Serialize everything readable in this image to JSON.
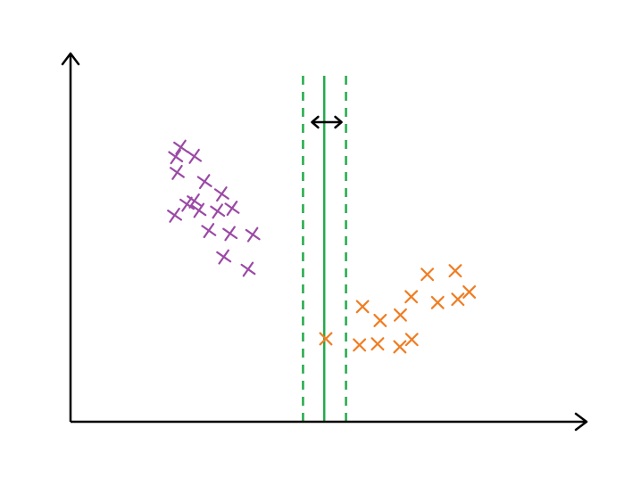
{
  "diagram": {
    "kind": "svm-max-margin-separator",
    "colors": {
      "axis": "#000000",
      "class_a": "#9b4aa6",
      "class_b": "#f07d22",
      "hyperplane": "#23a94a",
      "margin": "#23a94a",
      "margin_arrow": "#000000"
    },
    "class_a_points": [
      [
        0.213,
        0.751
      ],
      [
        0.203,
        0.725
      ],
      [
        0.239,
        0.726
      ],
      [
        0.206,
        0.682
      ],
      [
        0.259,
        0.657
      ],
      [
        0.292,
        0.623
      ],
      [
        0.225,
        0.595
      ],
      [
        0.201,
        0.565
      ],
      [
        0.239,
        0.604
      ],
      [
        0.284,
        0.576
      ],
      [
        0.312,
        0.584
      ],
      [
        0.267,
        0.523
      ],
      [
        0.308,
        0.515
      ],
      [
        0.296,
        0.451
      ],
      [
        0.352,
        0.512
      ],
      [
        0.343,
        0.417
      ],
      [
        0.248,
        0.578
      ]
    ],
    "class_b_points": [
      [
        0.493,
        0.227
      ],
      [
        0.593,
        0.213
      ],
      [
        0.558,
        0.21
      ],
      [
        0.636,
        0.205
      ],
      [
        0.598,
        0.277
      ],
      [
        0.659,
        0.225
      ],
      [
        0.564,
        0.315
      ],
      [
        0.637,
        0.292
      ],
      [
        0.709,
        0.326
      ],
      [
        0.689,
        0.403
      ],
      [
        0.743,
        0.413
      ],
      [
        0.748,
        0.335
      ],
      [
        0.77,
        0.355
      ],
      [
        0.658,
        0.342
      ]
    ],
    "decision_boundary_x": 0.49,
    "margin_lower_x": 0.449,
    "margin_upper_x": 0.532
  }
}
